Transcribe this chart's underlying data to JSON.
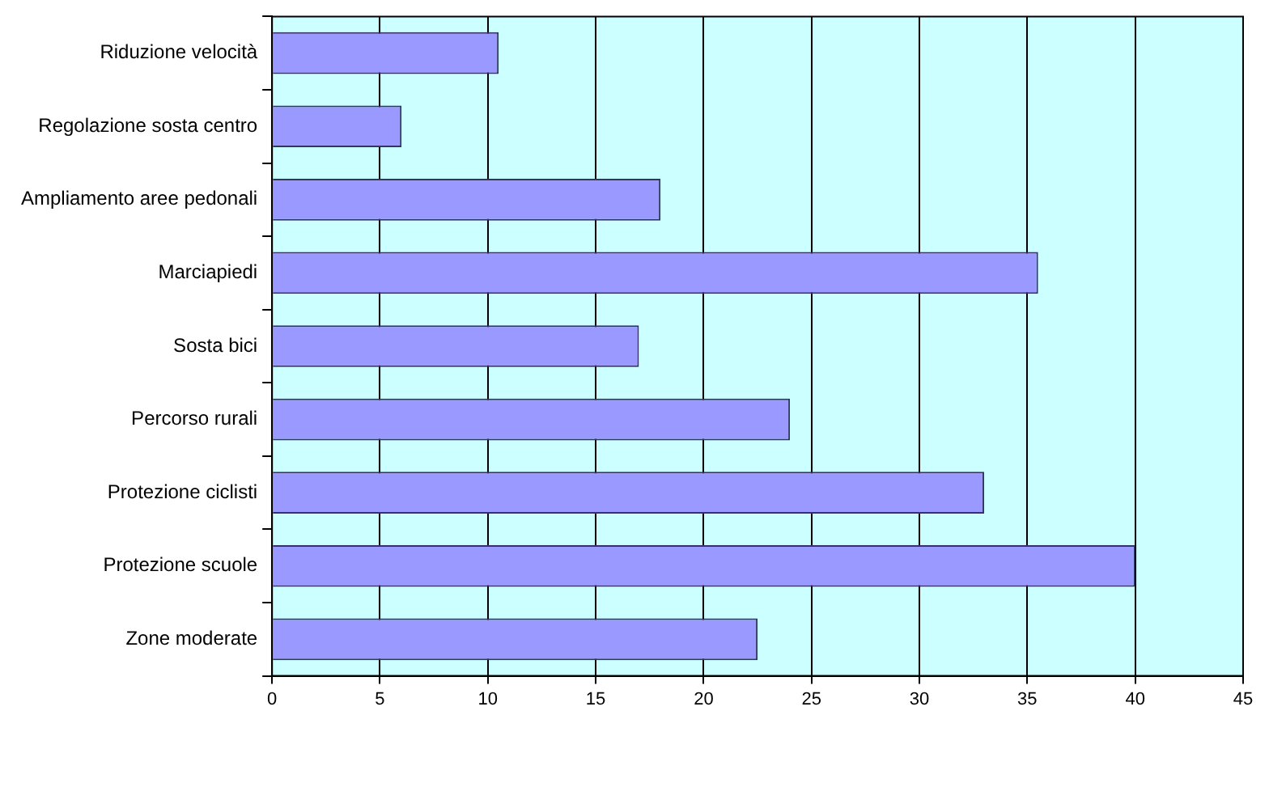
{
  "chart_data": {
    "type": "bar",
    "orientation": "horizontal",
    "categories": [
      "Riduzione velocità",
      "Regolazione sosta centro",
      "Ampliamento aree pedonali",
      "Marciapiedi",
      "Sosta bici",
      "Percorso rurali",
      "Protezione ciclisti",
      "Protezione scuole",
      "Zone moderate"
    ],
    "values": [
      10.5,
      6,
      18,
      35.5,
      17,
      24,
      33,
      40,
      22.5
    ],
    "color": "#9999ff",
    "xlim": [
      0,
      45
    ],
    "xticks": [
      0,
      5,
      10,
      15,
      20,
      25,
      30,
      35,
      40,
      45
    ],
    "grid": "x",
    "legend": false
  }
}
